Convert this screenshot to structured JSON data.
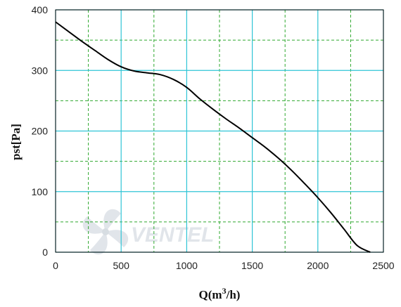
{
  "chart_data": {
    "type": "line",
    "xlabel": "Q(m3/h)",
    "xlabel_main": "Q(m",
    "xlabel_sup": "3",
    "xlabel_tail": "/h)",
    "ylabel": "pst[Pa]",
    "xlim": [
      0,
      2500
    ],
    "ylim": [
      0,
      400
    ],
    "x_ticks": [
      0,
      500,
      1000,
      1500,
      2000,
      2500
    ],
    "y_ticks": [
      0,
      100,
      200,
      300,
      400
    ],
    "x_minor_grid": [
      250,
      750,
      1250,
      1750,
      2250
    ],
    "y_minor_grid": [
      50,
      150,
      250,
      350
    ],
    "grid": true,
    "series": [
      {
        "x": [
          0,
          100,
          200,
          300,
          400,
          500,
          600,
          700,
          800,
          900,
          1000,
          1100,
          1200,
          1300,
          1400,
          1500,
          1600,
          1700,
          1800,
          1900,
          2000,
          2100,
          2200,
          2300,
          2400
        ],
        "y": [
          380,
          364,
          348,
          333,
          318,
          306,
          299,
          296,
          293,
          285,
          272,
          253,
          236,
          220,
          205,
          189,
          173,
          155,
          135,
          113,
          90,
          65,
          38,
          11,
          0
        ]
      }
    ]
  },
  "logo": {
    "text": "VENTEL"
  },
  "colors": {
    "major_grid": "#2fc4d6",
    "minor_grid": "#2ea82e",
    "curve": "#000000",
    "frame": "#000000",
    "logo_fill": "#c9d1da"
  }
}
